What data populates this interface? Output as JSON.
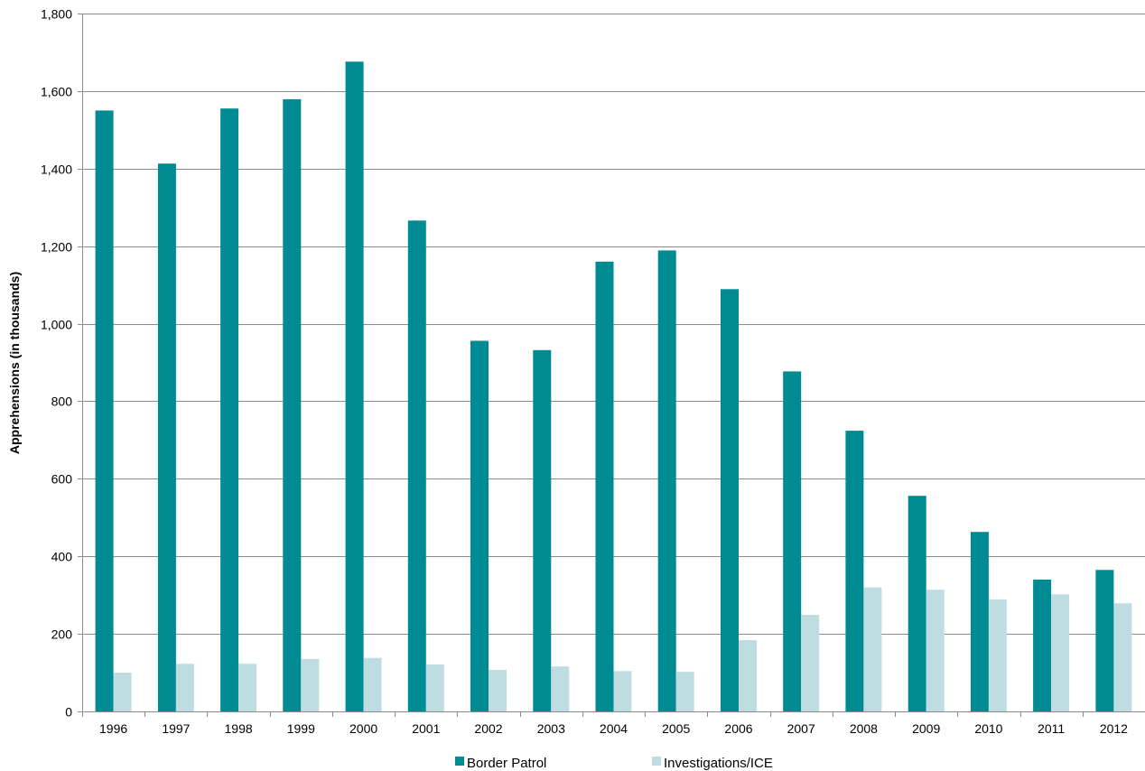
{
  "chart_data": {
    "type": "bar",
    "title": "",
    "xlabel": "",
    "ylabel": "Apprehensions (in thousands)",
    "ylim": [
      0,
      1800
    ],
    "yticks": [
      0,
      200,
      400,
      600,
      800,
      1000,
      1200,
      1400,
      1600,
      1800
    ],
    "ytick_labels": [
      "0",
      "200",
      "400",
      "600",
      "800",
      "1,000",
      "1,200",
      "1,400",
      "1,600",
      "1,800"
    ],
    "categories": [
      "1996",
      "1997",
      "1998",
      "1999",
      "2000",
      "2001",
      "2002",
      "2003",
      "2004",
      "2005",
      "2006",
      "2007",
      "2008",
      "2009",
      "2010",
      "2011",
      "2012"
    ],
    "series": [
      {
        "name": "Border Patrol",
        "color": "#008b93",
        "values": [
          1550,
          1413,
          1555,
          1579,
          1676,
          1266,
          956,
          932,
          1160,
          1189,
          1089,
          877,
          724,
          556,
          463,
          340,
          365
        ]
      },
      {
        "name": "Investigations/ICE",
        "color": "#bfdde1",
        "values": [
          100,
          123,
          123,
          135,
          138,
          121,
          107,
          116,
          104,
          102,
          184,
          249,
          320,
          314,
          289,
          302,
          279
        ]
      }
    ],
    "grid": true,
    "legend_position": "bottom-center"
  }
}
